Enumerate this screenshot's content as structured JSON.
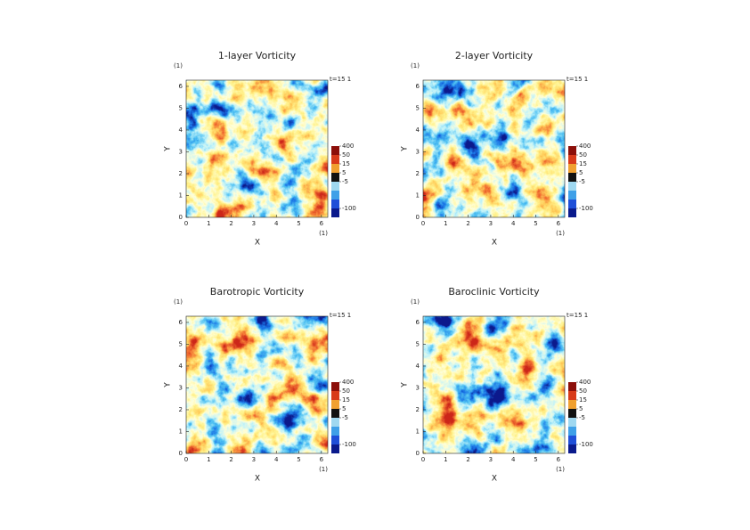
{
  "chart_data": [
    {
      "type": "field",
      "title": "1-layer Vorticity",
      "x_label": "X",
      "y_label": "Y",
      "x_unit": "(1)",
      "y_unit": "(1)",
      "annotation": "t=15 1",
      "xlim": [
        0,
        6.283
      ],
      "ylim": [
        0,
        6.283
      ],
      "xticks": [
        0,
        1,
        2,
        3,
        4,
        5,
        6
      ],
      "yticks": [
        0,
        1,
        2,
        3,
        4,
        5,
        6
      ],
      "colorbar": {
        "levels": [
          -400,
          -100,
          -50,
          -15,
          -5,
          5,
          15,
          50,
          400
        ],
        "colors": [
          "#0a1a8c",
          "#1f4fd8",
          "#3fa0e8",
          "#9fd8f0",
          "#111111",
          "#f0a030",
          "#d83a1a",
          "#8c0f0a"
        ],
        "ticks": [
          {
            "value": 400,
            "label": "400"
          },
          {
            "value": 50,
            "label": "50"
          },
          {
            "value": 15,
            "label": "15"
          },
          {
            "value": 5,
            "label": "5"
          },
          {
            "value": -5,
            "label": "-5"
          },
          {
            "value": -100,
            "label": "-100"
          }
        ]
      }
    },
    {
      "type": "field",
      "title": "2-layer Vorticity",
      "x_label": "X",
      "y_label": "Y",
      "x_unit": "(1)",
      "y_unit": "(1)",
      "annotation": "t=15 1",
      "xlim": [
        0,
        6.283
      ],
      "ylim": [
        0,
        6.283
      ],
      "xticks": [
        0,
        1,
        2,
        3,
        4,
        5,
        6
      ],
      "yticks": [
        0,
        1,
        2,
        3,
        4,
        5,
        6
      ],
      "colorbar": {
        "levels": [
          -400,
          -100,
          -50,
          -15,
          -5,
          5,
          15,
          50,
          400
        ],
        "colors": [
          "#0a1a8c",
          "#1f4fd8",
          "#3fa0e8",
          "#9fd8f0",
          "#111111",
          "#f0a030",
          "#d83a1a",
          "#8c0f0a"
        ],
        "ticks": [
          {
            "value": 400,
            "label": "400"
          },
          {
            "value": 50,
            "label": "50"
          },
          {
            "value": 15,
            "label": "15"
          },
          {
            "value": 5,
            "label": "5"
          },
          {
            "value": -5,
            "label": "-5"
          },
          {
            "value": -100,
            "label": "-100"
          }
        ]
      }
    },
    {
      "type": "field",
      "title": "Barotropic Vorticity",
      "x_label": "X",
      "y_label": "Y",
      "x_unit": "(1)",
      "y_unit": "(1)",
      "annotation": "t=15 1",
      "xlim": [
        0,
        6.283
      ],
      "ylim": [
        0,
        6.283
      ],
      "xticks": [
        0,
        1,
        2,
        3,
        4,
        5,
        6
      ],
      "yticks": [
        0,
        1,
        2,
        3,
        4,
        5,
        6
      ],
      "colorbar": {
        "levels": [
          -400,
          -100,
          -50,
          -15,
          -5,
          5,
          15,
          50,
          400
        ],
        "colors": [
          "#0a1a8c",
          "#1f4fd8",
          "#3fa0e8",
          "#9fd8f0",
          "#111111",
          "#f0a030",
          "#d83a1a",
          "#8c0f0a"
        ],
        "ticks": [
          {
            "value": 400,
            "label": "400"
          },
          {
            "value": 50,
            "label": "50"
          },
          {
            "value": 15,
            "label": "15"
          },
          {
            "value": 5,
            "label": "5"
          },
          {
            "value": -5,
            "label": "-5"
          },
          {
            "value": -100,
            "label": "-100"
          }
        ]
      }
    },
    {
      "type": "field",
      "title": "Baroclinic Vorticity",
      "x_label": "X",
      "y_label": "Y",
      "x_unit": "(1)",
      "y_unit": "(1)",
      "annotation": "t=15 1",
      "xlim": [
        0,
        6.283
      ],
      "ylim": [
        0,
        6.283
      ],
      "xticks": [
        0,
        1,
        2,
        3,
        4,
        5,
        6
      ],
      "yticks": [
        0,
        1,
        2,
        3,
        4,
        5,
        6
      ],
      "colorbar": {
        "levels": [
          -400,
          -100,
          -50,
          -15,
          -5,
          5,
          15,
          50,
          400
        ],
        "colors": [
          "#0a1a8c",
          "#1f4fd8",
          "#3fa0e8",
          "#9fd8f0",
          "#111111",
          "#f0a030",
          "#d83a1a",
          "#8c0f0a"
        ],
        "ticks": [
          {
            "value": 400,
            "label": "400"
          },
          {
            "value": 50,
            "label": "50"
          },
          {
            "value": 15,
            "label": "15"
          },
          {
            "value": 5,
            "label": "5"
          },
          {
            "value": -5,
            "label": "-5"
          },
          {
            "value": -100,
            "label": "-100"
          }
        ]
      }
    }
  ]
}
